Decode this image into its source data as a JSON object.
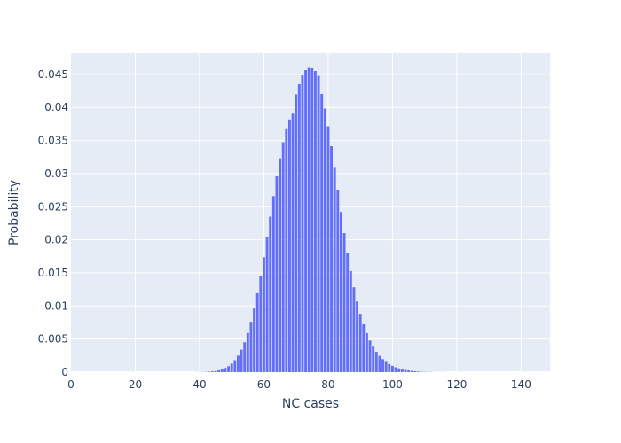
{
  "chart_data": {
    "type": "bar",
    "xlabel": "NC cases",
    "ylabel": "Probability",
    "xlim": [
      0,
      149
    ],
    "ylim": [
      0,
      0.0482
    ],
    "xticks": [
      0,
      20,
      40,
      60,
      80,
      100,
      120,
      140
    ],
    "yticks": [
      0,
      0.005,
      0.01,
      0.015,
      0.02,
      0.025,
      0.03,
      0.035,
      0.04,
      0.045
    ],
    "ytick_labels": [
      "0",
      "0.005",
      "0.01",
      "0.015",
      "0.02",
      "0.025",
      "0.03",
      "0.035",
      "0.04",
      "0.045"
    ],
    "grid": true,
    "legend": "none",
    "x_start": 0,
    "values": [
      0,
      0,
      0,
      0,
      0,
      0,
      0,
      0,
      0,
      0,
      0,
      0,
      0,
      0,
      0,
      0,
      0,
      0,
      0,
      0,
      0,
      0,
      0,
      0,
      0,
      0,
      0,
      0,
      0,
      0,
      0,
      0,
      0,
      0,
      0,
      0,
      0,
      0,
      0,
      1e-05,
      2e-05,
      3e-05,
      5e-05,
      8e-05,
      0.00012,
      0.00018,
      0.00028,
      0.00042,
      0.00062,
      0.0009,
      0.00129,
      0.00181,
      0.0025,
      0.0034,
      0.00452,
      0.00592,
      0.00761,
      0.00962,
      0.01193,
      0.01453,
      0.01737,
      0.02039,
      0.0235,
      0.0266,
      0.02958,
      0.03233,
      0.03474,
      0.03672,
      0.03818,
      0.03906,
      0.04199,
      0.04351,
      0.04485,
      0.04565,
      0.04598,
      0.04593,
      0.04552,
      0.04478,
      0.04205,
      0.03984,
      0.03715,
      0.03413,
      0.03088,
      0.02753,
      0.02421,
      0.02101,
      0.01802,
      0.01528,
      0.01283,
      0.01068,
      0.00882,
      0.00724,
      0.0059,
      0.00478,
      0.00385,
      0.00309,
      0.00246,
      0.00196,
      0.00155,
      0.00122,
      0.00095,
      0.00074,
      0.00057,
      0.00044,
      0.00034,
      0.00026,
      0.00019,
      0.00014,
      0.0001,
      7e-05,
      5e-05,
      4e-05,
      3e-05,
      2e-05,
      1e-05,
      1e-05,
      0,
      0,
      0,
      0,
      0,
      0,
      0,
      0,
      0,
      0,
      0,
      0,
      0,
      0,
      0,
      0,
      0,
      0,
      0,
      0,
      0,
      0,
      0,
      0,
      0,
      0,
      0,
      0,
      0,
      0,
      0,
      0,
      0
    ],
    "colors": {
      "bar": "#636efa",
      "plot_bg": "#e5ecf6",
      "grid": "#ffffff",
      "text": "#2a3f5f"
    }
  }
}
